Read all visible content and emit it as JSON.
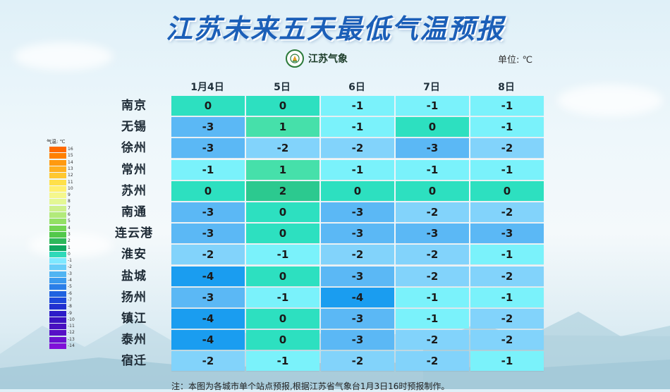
{
  "title": "江苏未来五天最低气温预报",
  "logo": {
    "text": "江苏气象",
    "icon": "weather-service-emblem-icon"
  },
  "unit": "单位: ℃",
  "days": [
    "1月4日",
    "5日",
    "6日",
    "7日",
    "8日"
  ],
  "rows": [
    {
      "city": "南京",
      "values": [
        0,
        0,
        -1,
        -1,
        -1
      ]
    },
    {
      "city": "无锡",
      "values": [
        -3,
        1,
        -1,
        0,
        -1
      ]
    },
    {
      "city": "徐州",
      "values": [
        -3,
        -2,
        -2,
        -3,
        -2
      ]
    },
    {
      "city": "常州",
      "values": [
        -1,
        1,
        -1,
        -1,
        -1
      ]
    },
    {
      "city": "苏州",
      "values": [
        0,
        2,
        0,
        0,
        0
      ]
    },
    {
      "city": "南通",
      "values": [
        -3,
        0,
        -3,
        -2,
        -2
      ]
    },
    {
      "city": "连云港",
      "values": [
        -3,
        0,
        -3,
        -3,
        -3
      ]
    },
    {
      "city": "淮安",
      "values": [
        -2,
        -1,
        -2,
        -2,
        -1
      ]
    },
    {
      "city": "盐城",
      "values": [
        -4,
        0,
        -3,
        -2,
        -2
      ]
    },
    {
      "city": "扬州",
      "values": [
        -3,
        -1,
        -4,
        -1,
        -1
      ]
    },
    {
      "city": "镇江",
      "values": [
        -4,
        0,
        -3,
        -1,
        -2
      ]
    },
    {
      "city": "泰州",
      "values": [
        -4,
        0,
        -3,
        -2,
        -2
      ]
    },
    {
      "city": "宿迁",
      "values": [
        -2,
        -1,
        -2,
        -2,
        -1
      ]
    }
  ],
  "legend": {
    "title": "气温: ℃",
    "labels": [
      "16",
      "15",
      "14",
      "13",
      "12",
      "11",
      "10",
      "9",
      "8",
      "7",
      "6",
      "5",
      "4",
      "3",
      "2",
      "1",
      "0",
      "-1",
      "-2",
      "-3",
      "-4",
      "-5",
      "-6",
      "-7",
      "-8",
      "-9",
      "-10",
      "-11",
      "-12",
      "-13",
      "-14"
    ],
    "colors": [
      "#ff6a00",
      "#ff8000",
      "#ff9a10",
      "#ffb020",
      "#ffc830",
      "#ffe04a",
      "#fff070",
      "#f5f78c",
      "#e4f794",
      "#cdf08c",
      "#b2ea7a",
      "#93e064",
      "#72d552",
      "#52c84a",
      "#2eb85a",
      "#10a860",
      "#2fd9b8",
      "#7ee8ff",
      "#68cdf8",
      "#50b4f2",
      "#3a9aee",
      "#2a7ee8",
      "#1f62e0",
      "#1c48da",
      "#2030d0",
      "#2c1cc8",
      "#3a12c0",
      "#4810c0",
      "#5610c6",
      "#6a10d0",
      "#8010d8"
    ]
  },
  "cell_colors": {
    "2": "#2cc98f",
    "1": "#46e0aa",
    "0": "#2de0c0",
    "-1": "#7af2fb",
    "-2": "#82d3fb",
    "-3": "#5bb8f5",
    "-4": "#1a9df0"
  },
  "note": "注：本图为各城市单个站点预报,根据江苏省气象台1月3日16时预报制作。"
}
